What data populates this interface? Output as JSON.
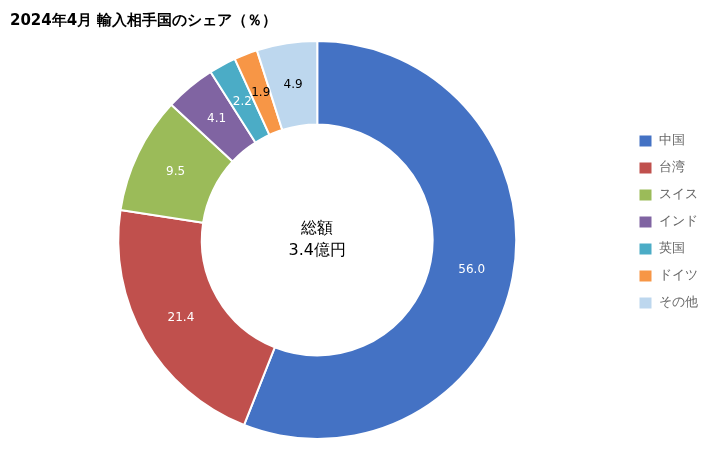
{
  "chart_data": {
    "type": "doughnut",
    "title": "2024年4月 輸入相手国のシェア（％）",
    "annotations": [
      "総額",
      "3.4億円"
    ],
    "categories": [
      "中国",
      "台湾",
      "スイス",
      "インド",
      "英国",
      "ドイツ",
      "その他"
    ],
    "values": [
      56.0,
      21.4,
      9.5,
      4.1,
      2.2,
      1.9,
      4.9
    ],
    "value_labels": [
      "56.0",
      "21.4",
      "9.5",
      "4.1",
      "2.2",
      "1.9",
      "4.9"
    ],
    "colors": [
      "#4472C4",
      "#C0504D",
      "#9BBB59",
      "#8064A2",
      "#4BACC6",
      "#F79646",
      "#BDD7EE"
    ],
    "data_labels": true,
    "legend": "right"
  }
}
